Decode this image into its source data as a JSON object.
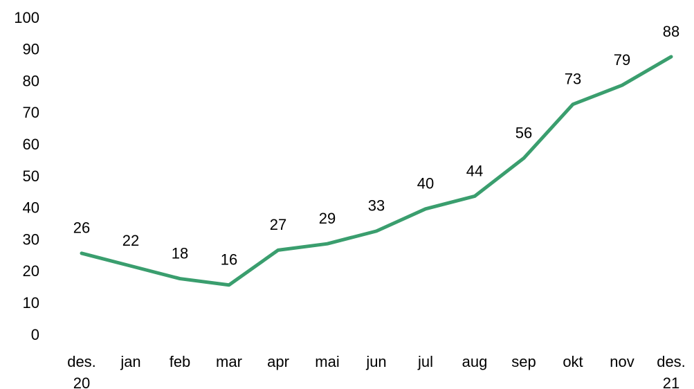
{
  "chart_data": {
    "type": "line",
    "categories": [
      "des. 20",
      "jan",
      "feb",
      "mar",
      "apr",
      "mai",
      "jun",
      "jul",
      "aug",
      "sep",
      "okt",
      "nov",
      "des. 21"
    ],
    "values": [
      26,
      22,
      18,
      16,
      27,
      29,
      33,
      40,
      44,
      56,
      73,
      79,
      88
    ],
    "color": "#3a9e6e",
    "ylim": [
      0,
      100
    ],
    "yticks": [
      0,
      10,
      20,
      30,
      40,
      50,
      60,
      70,
      80,
      90,
      100
    ],
    "grid": false
  }
}
